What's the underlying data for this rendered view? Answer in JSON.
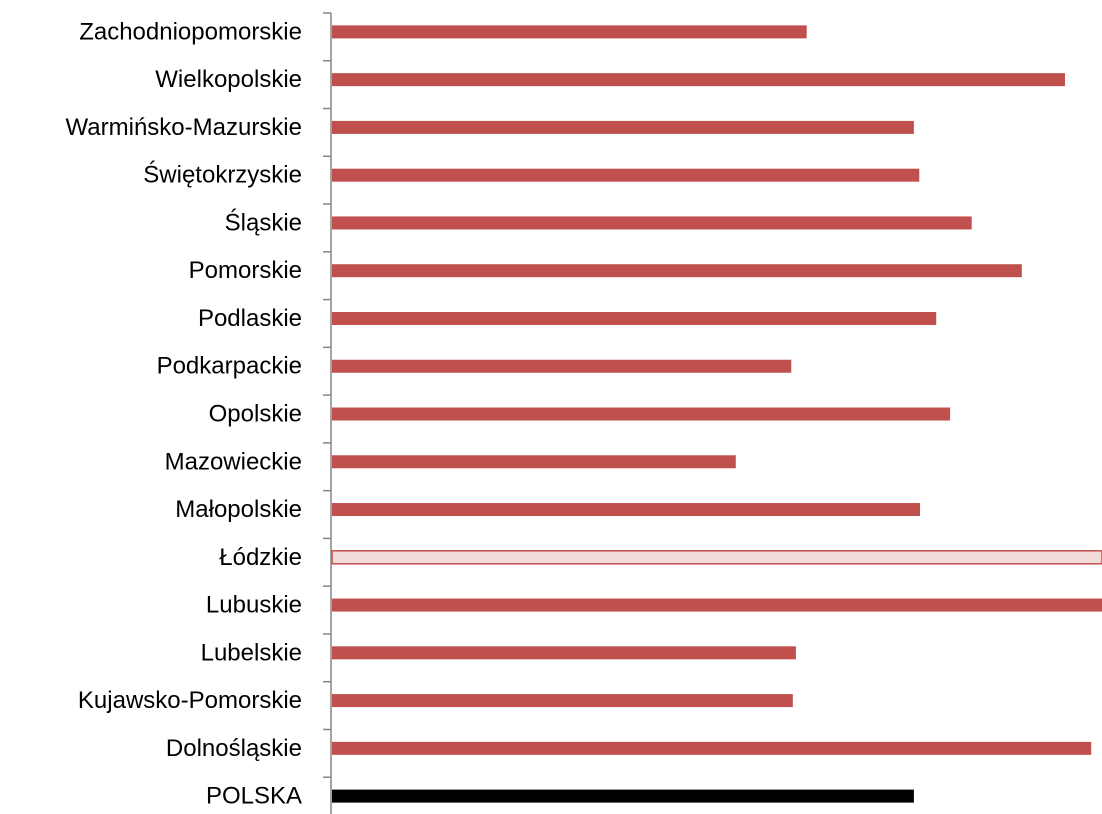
{
  "chart_data": {
    "type": "bar",
    "orientation": "horizontal",
    "title": "",
    "xlabel": "",
    "ylabel": "",
    "xlim": [
      0,
      100
    ],
    "grid": false,
    "legend": "none",
    "categories": [
      "Zachodniopomorskie",
      "Wielkopolskie",
      "Warmińsko-Mazurskie",
      "Świętokrzyskie",
      "Śląskie",
      "Pomorskie",
      "Podlaskie",
      "Podkarpackie",
      "Opolskie",
      "Mazowieckie",
      "Małopolskie",
      "Łódzkie",
      "Lubuskie",
      "Lubelskie",
      "Kujawsko-Pomorskie",
      "Dolnośląskie",
      "POLSKA"
    ],
    "values": [
      61.7,
      95.2,
      75.6,
      76.3,
      83.1,
      89.6,
      78.5,
      59.7,
      80.3,
      52.5,
      76.4,
      100,
      100,
      60.3,
      59.9,
      98.6,
      75.6
    ],
    "bar_colors": [
      "#c0504d",
      "#c0504d",
      "#c0504d",
      "#c0504d",
      "#c0504d",
      "#c0504d",
      "#c0504d",
      "#c0504d",
      "#c0504d",
      "#c0504d",
      "#c0504d",
      "#f2dcdb",
      "#c0504d",
      "#c0504d",
      "#c0504d",
      "#c0504d",
      "#000000"
    ],
    "bar_outline_colors": [
      "none",
      "none",
      "none",
      "none",
      "none",
      "none",
      "none",
      "none",
      "none",
      "none",
      "none",
      "#c0504d",
      "none",
      "none",
      "none",
      "none",
      "none"
    ],
    "axis_color": "#868686"
  }
}
